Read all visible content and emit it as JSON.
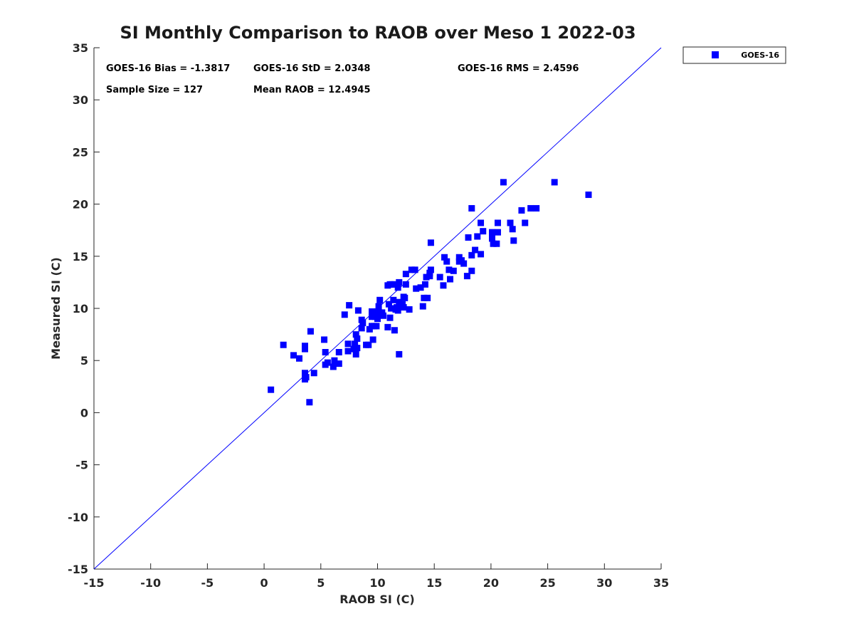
{
  "chart_data": {
    "type": "scatter",
    "title": "SI Monthly Comparison to RAOB over Meso 1 2022-03",
    "xlabel": "RAOB SI (C)",
    "ylabel": "Measured SI (C)",
    "xlim": [
      -15,
      35
    ],
    "ylim": [
      -15,
      35
    ],
    "xticks": [
      -15,
      -10,
      -5,
      0,
      5,
      10,
      15,
      20,
      25,
      30,
      35
    ],
    "yticks": [
      -15,
      -10,
      -5,
      0,
      5,
      10,
      15,
      20,
      25,
      30,
      35
    ],
    "grid": false,
    "legend_position": "outside-top-right",
    "reference_line": {
      "name": "1:1 line",
      "x": [
        -15,
        35
      ],
      "y": [
        -15,
        35
      ],
      "color": "#0000ff"
    },
    "stats": [
      {
        "name": "bias",
        "text": "GOES-16 Bias = -1.3817"
      },
      {
        "name": "std",
        "text": "GOES-16 StD = 2.0348"
      },
      {
        "name": "rms",
        "text": "GOES-16 RMS = 2.4596"
      },
      {
        "name": "sample-size",
        "text": "Sample Size = 127"
      },
      {
        "name": "mean-raob",
        "text": "Mean RAOB = 12.4945"
      }
    ],
    "series": [
      {
        "name": "GOES-16",
        "color": "#0000ff",
        "marker": "square",
        "points": [
          [
            0.6,
            2.2
          ],
          [
            1.7,
            6.5
          ],
          [
            2.6,
            5.5
          ],
          [
            3.1,
            5.2
          ],
          [
            3.6,
            6.4
          ],
          [
            3.6,
            6.1
          ],
          [
            3.6,
            3.8
          ],
          [
            3.6,
            3.2
          ],
          [
            3.7,
            3.4
          ],
          [
            4.0,
            1.0
          ],
          [
            4.1,
            7.8
          ],
          [
            4.4,
            3.8
          ],
          [
            5.3,
            7.0
          ],
          [
            5.4,
            5.8
          ],
          [
            5.4,
            4.6
          ],
          [
            5.6,
            4.8
          ],
          [
            6.1,
            4.4
          ],
          [
            6.2,
            5.0
          ],
          [
            6.6,
            5.8
          ],
          [
            6.6,
            4.7
          ],
          [
            7.1,
            9.4
          ],
          [
            7.4,
            6.6
          ],
          [
            7.4,
            5.9
          ],
          [
            7.5,
            10.3
          ],
          [
            7.9,
            6.1
          ],
          [
            8.0,
            6.6
          ],
          [
            8.1,
            7.5
          ],
          [
            8.1,
            5.6
          ],
          [
            8.2,
            6.2
          ],
          [
            8.2,
            7.1
          ],
          [
            8.3,
            9.8
          ],
          [
            8.6,
            8.9
          ],
          [
            8.6,
            8.1
          ],
          [
            8.7,
            8.6
          ],
          [
            9.0,
            6.5
          ],
          [
            9.2,
            6.5
          ],
          [
            9.3,
            8.0
          ],
          [
            9.5,
            8.3
          ],
          [
            9.5,
            9.7
          ],
          [
            9.5,
            9.2
          ],
          [
            9.6,
            7.0
          ],
          [
            9.7,
            8.3
          ],
          [
            9.8,
            9.2
          ],
          [
            9.9,
            8.3
          ],
          [
            10.0,
            9.0
          ],
          [
            10.0,
            9.4
          ],
          [
            10.0,
            9.7
          ],
          [
            10.1,
            10.2
          ],
          [
            10.2,
            10.8
          ],
          [
            10.2,
            9.4
          ],
          [
            10.4,
            9.6
          ],
          [
            10.5,
            9.3
          ],
          [
            10.9,
            12.2
          ],
          [
            10.9,
            8.2
          ],
          [
            11.0,
            10.4
          ],
          [
            11.1,
            12.3
          ],
          [
            11.1,
            9.1
          ],
          [
            11.2,
            10.0
          ],
          [
            11.3,
            12.3
          ],
          [
            11.4,
            10.8
          ],
          [
            11.5,
            12.3
          ],
          [
            11.5,
            7.9
          ],
          [
            11.6,
            9.9
          ],
          [
            11.7,
            10.1
          ],
          [
            11.8,
            9.8
          ],
          [
            11.8,
            12.0
          ],
          [
            11.9,
            12.5
          ],
          [
            11.9,
            10.6
          ],
          [
            11.9,
            5.6
          ],
          [
            12.1,
            10.3
          ],
          [
            12.2,
            10.4
          ],
          [
            12.3,
            10.1
          ],
          [
            12.4,
            11.0
          ],
          [
            12.5,
            12.3
          ],
          [
            12.5,
            13.3
          ],
          [
            12.8,
            9.9
          ],
          [
            13.0,
            13.7
          ],
          [
            13.3,
            13.7
          ],
          [
            13.4,
            11.9
          ],
          [
            13.8,
            12.0
          ],
          [
            14.0,
            10.2
          ],
          [
            14.1,
            11.0
          ],
          [
            14.2,
            12.3
          ],
          [
            14.3,
            13.0
          ],
          [
            14.4,
            11.0
          ],
          [
            14.6,
            13.4
          ],
          [
            14.6,
            13.1
          ],
          [
            14.7,
            16.3
          ],
          [
            14.7,
            13.7
          ],
          [
            15.5,
            13.0
          ],
          [
            15.8,
            12.2
          ],
          [
            15.9,
            14.9
          ],
          [
            16.1,
            14.5
          ],
          [
            16.3,
            13.7
          ],
          [
            16.4,
            12.8
          ],
          [
            16.7,
            13.6
          ],
          [
            17.2,
            14.9
          ],
          [
            17.2,
            14.5
          ],
          [
            17.4,
            14.6
          ],
          [
            17.6,
            14.3
          ],
          [
            17.9,
            13.1
          ],
          [
            18.0,
            16.8
          ],
          [
            18.3,
            19.6
          ],
          [
            18.3,
            15.1
          ],
          [
            18.3,
            13.6
          ],
          [
            18.6,
            15.6
          ],
          [
            18.8,
            16.9
          ],
          [
            19.1,
            15.2
          ],
          [
            19.1,
            18.2
          ],
          [
            19.3,
            17.4
          ],
          [
            20.1,
            17.3
          ],
          [
            20.1,
            16.7
          ],
          [
            20.2,
            16.2
          ],
          [
            20.5,
            16.2
          ],
          [
            20.6,
            18.2
          ],
          [
            20.6,
            17.3
          ],
          [
            21.1,
            22.1
          ],
          [
            21.7,
            18.2
          ],
          [
            21.9,
            17.6
          ],
          [
            22.0,
            16.5
          ],
          [
            22.7,
            19.4
          ],
          [
            23.0,
            18.2
          ],
          [
            23.5,
            19.6
          ],
          [
            24.0,
            19.6
          ],
          [
            25.6,
            22.1
          ],
          [
            28.6,
            20.9
          ],
          [
            12.3,
            11.1
          ]
        ]
      }
    ]
  }
}
